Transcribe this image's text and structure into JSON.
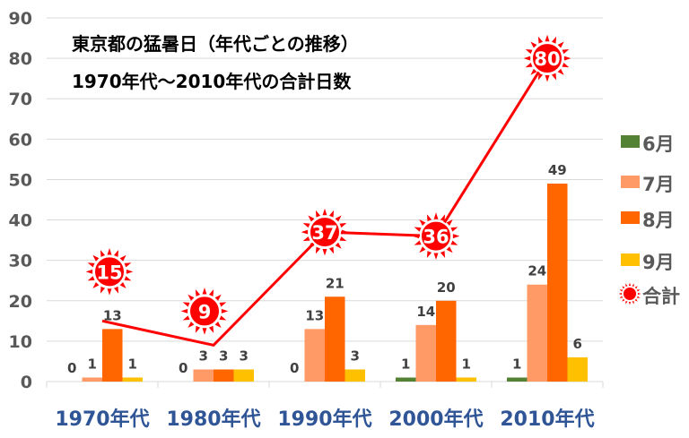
{
  "chart_data": {
    "type": "bar",
    "title_lines": [
      "東京都の猛暑日（年代ごとの推移）",
      "1970年代～2010年代の合計日数"
    ],
    "categories": [
      "1970年代",
      "1980年代",
      "1990年代",
      "2000年代",
      "2010年代"
    ],
    "ylim": [
      0,
      90
    ],
    "yticks": [
      0,
      10,
      20,
      30,
      40,
      50,
      60,
      70,
      80,
      90
    ],
    "grid": true,
    "legend": "right",
    "series": [
      {
        "name": "6月",
        "type": "bar",
        "color": "#548235",
        "values": [
          0,
          0,
          0,
          1,
          1
        ]
      },
      {
        "name": "7月",
        "type": "bar",
        "color": "#FF9966",
        "values": [
          1,
          3,
          13,
          14,
          24
        ]
      },
      {
        "name": "8月",
        "type": "bar",
        "color": "#FF6600",
        "values": [
          13,
          3,
          21,
          20,
          49
        ]
      },
      {
        "name": "9月",
        "type": "bar",
        "color": "#FFC000",
        "values": [
          1,
          3,
          3,
          1,
          6
        ]
      },
      {
        "name": "合計",
        "type": "line",
        "color": "#FF0000",
        "marker": "sun-icon",
        "values": [
          15,
          9,
          37,
          36,
          80
        ]
      }
    ]
  }
}
